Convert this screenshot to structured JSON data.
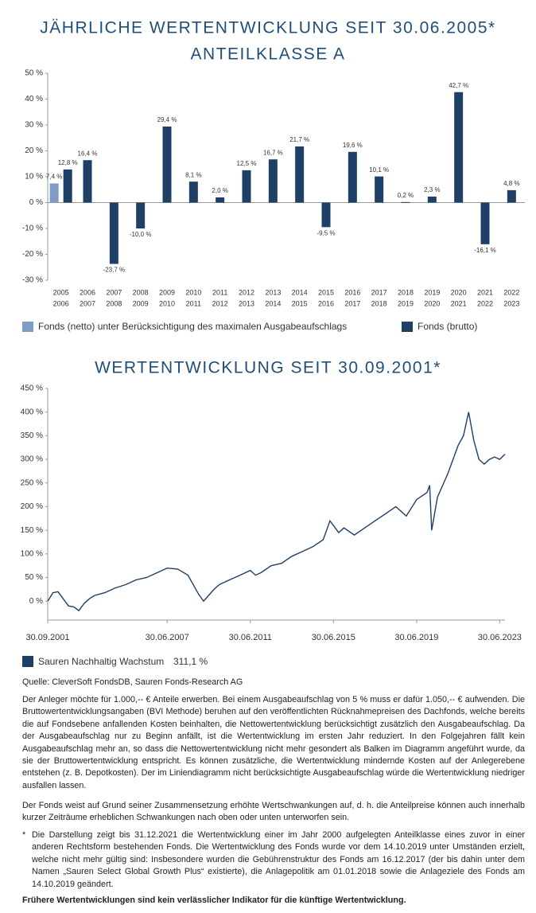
{
  "chart_data": [
    {
      "type": "bar",
      "title": "JÄHRLICHE WERTENTWICKLUNG SEIT 30.06.2005*",
      "subtitle": "ANTEILKLASSE A",
      "categories": [
        [
          "2005",
          "2006"
        ],
        [
          "2006",
          "2007"
        ],
        [
          "2007",
          "2008"
        ],
        [
          "2008",
          "2009"
        ],
        [
          "2009",
          "2010"
        ],
        [
          "2010",
          "2011"
        ],
        [
          "2011",
          "2012"
        ],
        [
          "2012",
          "2013"
        ],
        [
          "2013",
          "2014"
        ],
        [
          "2014",
          "2015"
        ],
        [
          "2015",
          "2016"
        ],
        [
          "2016",
          "2017"
        ],
        [
          "2017",
          "2018"
        ],
        [
          "2018",
          "2019"
        ],
        [
          "2019",
          "2020"
        ],
        [
          "2020",
          "2021"
        ],
        [
          "2021",
          "2022"
        ],
        [
          "2022",
          "2023"
        ]
      ],
      "series": [
        {
          "name": "Fonds (netto) unter Berücksichtigung des maximalen Ausgabeaufschlags",
          "color": "#7f9cc6",
          "values": [
            7.4,
            null,
            null,
            null,
            null,
            null,
            null,
            null,
            null,
            null,
            null,
            null,
            null,
            null,
            null,
            null,
            null,
            null
          ],
          "value_labels": [
            "7,4 %",
            null,
            null,
            null,
            null,
            null,
            null,
            null,
            null,
            null,
            null,
            null,
            null,
            null,
            null,
            null,
            null,
            null
          ]
        },
        {
          "name": "Fonds (brutto)",
          "color": "#1e3f66",
          "values": [
            12.8,
            16.4,
            -23.7,
            -10.0,
            29.4,
            8.1,
            2.0,
            12.5,
            16.7,
            21.7,
            -9.5,
            19.6,
            10.1,
            0.2,
            2.3,
            42.7,
            -16.1,
            4.8
          ],
          "value_labels": [
            "12,8 %",
            "16,4 %",
            "-23,7 %",
            "-10,0 %",
            "29,4 %",
            "8,1 %",
            "2,0 %",
            "12,5 %",
            "16,7 %",
            "21,7 %",
            "-9,5 %",
            "19,6 %",
            "10,1 %",
            "0,2 %",
            "2,3 %",
            "42,7 %",
            "-16,1 %",
            "4,8 %"
          ]
        }
      ],
      "ylim": [
        -30,
        50
      ],
      "yticks": [
        {
          "value": -30,
          "label": "-30 %"
        },
        {
          "value": -20,
          "label": "-20 %"
        },
        {
          "value": -10,
          "label": "-10 %"
        },
        {
          "value": 0,
          "label": "0 %"
        },
        {
          "value": 10,
          "label": "10 %"
        },
        {
          "value": 20,
          "label": "20 %"
        },
        {
          "value": 30,
          "label": "30 %"
        },
        {
          "value": 40,
          "label": "40 %"
        },
        {
          "value": 50,
          "label": "50 %"
        }
      ]
    },
    {
      "type": "line",
      "title": "WERTENTWICKLUNG SEIT 30.09.2001*",
      "x": [
        "2001-09-30",
        "2001-12-31",
        "2002-03-31",
        "2002-06-30",
        "2002-09-30",
        "2002-12-31",
        "2003-03-31",
        "2003-06-30",
        "2003-09-30",
        "2003-12-31",
        "2004-06-30",
        "2004-12-31",
        "2005-06-30",
        "2005-12-31",
        "2006-06-30",
        "2006-12-31",
        "2007-06-30",
        "2007-12-31",
        "2008-06-30",
        "2008-12-31",
        "2009-03-31",
        "2009-09-30",
        "2009-12-31",
        "2010-06-30",
        "2010-12-31",
        "2011-06-30",
        "2011-09-30",
        "2011-12-31",
        "2012-06-30",
        "2012-12-31",
        "2013-06-30",
        "2013-12-31",
        "2014-06-30",
        "2014-12-31",
        "2015-04-30",
        "2015-09-30",
        "2015-12-31",
        "2016-06-30",
        "2016-12-31",
        "2017-06-30",
        "2017-12-31",
        "2018-06-30",
        "2018-12-31",
        "2019-06-30",
        "2019-12-31",
        "2020-02-15",
        "2020-03-20",
        "2020-06-30",
        "2020-12-31",
        "2021-06-30",
        "2021-09-30",
        "2021-12-31",
        "2022-03-31",
        "2022-06-30",
        "2022-09-30",
        "2022-12-31",
        "2023-03-31",
        "2023-06-30",
        "2023-09-30"
      ],
      "series": [
        {
          "name": "Sauren Nachhaltig Wachstum",
          "color": "#1e3f66",
          "end_label": "311,1 %",
          "values": [
            0,
            18,
            20,
            5,
            -10,
            -12,
            -20,
            -5,
            5,
            12,
            18,
            28,
            35,
            45,
            50,
            60,
            70,
            68,
            55,
            15,
            0,
            25,
            35,
            45,
            55,
            65,
            55,
            60,
            75,
            80,
            95,
            105,
            115,
            130,
            170,
            145,
            155,
            140,
            155,
            170,
            185,
            200,
            180,
            215,
            230,
            245,
            150,
            220,
            270,
            330,
            350,
            400,
            340,
            300,
            290,
            300,
            305,
            300,
            311.1
          ]
        }
      ],
      "xlim": [
        "2001-09-30",
        "2023-09-30"
      ],
      "xticks": [
        {
          "value": "2001-09-30",
          "label": "30.09.2001"
        },
        {
          "value": "2007-06-30",
          "label": "30.06.2007"
        },
        {
          "value": "2011-06-30",
          "label": "30.06.2011"
        },
        {
          "value": "2015-06-30",
          "label": "30.06.2015"
        },
        {
          "value": "2019-06-30",
          "label": "30.06.2019"
        },
        {
          "value": "2023-06-30",
          "label": "30.06.2023"
        }
      ],
      "ylim": [
        -40,
        450
      ],
      "yticks": [
        {
          "value": 0,
          "label": "0 %"
        },
        {
          "value": 50,
          "label": "50 %"
        },
        {
          "value": 100,
          "label": "100 %"
        },
        {
          "value": 150,
          "label": "150 %"
        },
        {
          "value": 200,
          "label": "200 %"
        },
        {
          "value": 250,
          "label": "250 %"
        },
        {
          "value": 300,
          "label": "300 %"
        },
        {
          "value": 350,
          "label": "350 %"
        },
        {
          "value": 400,
          "label": "400 %"
        },
        {
          "value": 450,
          "label": "450 %"
        }
      ]
    }
  ],
  "document": {
    "source": "Quelle: CleverSoft FondsDB, Sauren Fonds-Research AG",
    "paragraphs": [
      "Der Anleger möchte für 1.000,-- € Anteile erwerben. Bei einem Ausgabeaufschlag von 5 % muss er dafür 1.050,-- € aufwenden. Die Bruttowertentwicklungsangaben (BVI Methode) beruhen auf den veröffentlichten Rücknahmepreisen des Dachfonds, welche bereits die auf Fondsebene anfallenden Kosten beinhalten, die Nettowertentwicklung berücksichtigt zusätzlich den Ausgabeaufschlag. Da der Ausgabeaufschlag nur zu Beginn anfällt, ist die Wertentwicklung im ersten Jahr reduziert. In den Folgejahren fällt kein Ausgabeaufschlag mehr an, so dass die Nettowertentwicklung nicht mehr gesondert als Balken im Diagramm angeführt wurde, da sie der Bruttowertentwicklung entspricht. Es können zusätzliche, die Wertentwicklung mindernde Kosten auf der Anlegerebene entstehen (z. B. Depotkosten). Der im Liniendiagramm nicht berücksichtigte Ausgabeaufschlag würde die Wertentwicklung niedriger ausfallen lassen.",
      "Der Fonds weist auf Grund seiner Zusammensetzung erhöhte Wertschwankungen auf, d. h. die Anteilpreise können auch innerhalb kurzer Zeiträume erheblichen Schwankungen nach oben oder unten unterworfen sein."
    ],
    "footnote_marker": "*",
    "footnote": "Die Darstellung zeigt bis 31.12.2021 die Wertentwicklung einer im Jahr 2000 aufgelegten Anteilklasse eines zuvor in einer anderen Rechtsform bestehenden Fonds. Die Wertentwicklung des Fonds wurde vor dem 14.10.2019 unter Umständen erzielt, welche nicht mehr gültig sind: Insbesondere wurden die Gebührenstruktur des Fonds am 16.12.2017 (der bis dahin unter dem Namen „Sauren Select Global Growth Plus“ existierte), die Anlagepolitik am 01.01.2018 sowie die Anlageziele des Fonds am 14.10.2019 geändert.",
    "disclaimer": "Frühere Wertentwicklungen sind kein verlässlicher Indikator für die künftige Wertentwicklung."
  }
}
